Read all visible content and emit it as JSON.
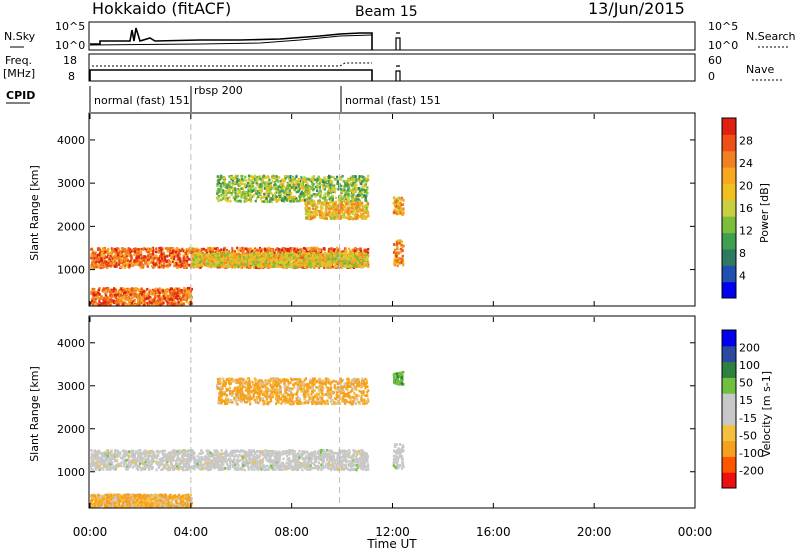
{
  "header": {
    "station": "Hokkaido (fitACF)",
    "beam": "Beam 15",
    "date": "13/Jun/2015"
  },
  "noise_panel": {
    "left_label": "N.Sky",
    "right_label": "N.Search",
    "left_ticks": [
      "10^5",
      "10^0"
    ],
    "right_ticks": [
      "10^5",
      "10^0"
    ]
  },
  "freq_panel": {
    "left_label_top": "Freq.",
    "left_label_bottom": "[MHz]",
    "right_label": "Nave",
    "left_ticks": [
      "18",
      "8"
    ],
    "right_ticks": [
      "60",
      "0"
    ]
  },
  "cpid": {
    "label": "CPID",
    "segments": [
      {
        "text": "normal (fast) 151",
        "start_hr": 0.0
      },
      {
        "text": "rbsp 200",
        "start_hr": 4.0
      },
      {
        "text": "normal (fast) 151",
        "start_hr": 9.9
      }
    ]
  },
  "colors": {
    "power": [
      "#0000ee",
      "#1f4fb0",
      "#2e7a60",
      "#3fa050",
      "#7cbe3c",
      "#c8d040",
      "#f0c020",
      "#f7a820",
      "#f08020",
      "#ee5018",
      "#e02010"
    ],
    "velocity": [
      "#ee1010",
      "#ff5500",
      "#f7a020",
      "#f5c040",
      "#c8c8c8",
      "#c8c8c8",
      "#70c040",
      "#2e8040",
      "#2a4aa0",
      "#0000ee"
    ],
    "grey_scatter": "#c8c8c8"
  },
  "chart_data": [
    {
      "type": "heatmap",
      "title": "Power",
      "ylabel": "Slant Range [km]",
      "xlabel": "",
      "x_range_hr": [
        0,
        24
      ],
      "ylim": [
        180,
        4600
      ],
      "yticks": [
        "1000",
        "2000",
        "3000",
        "4000"
      ],
      "colorbar": {
        "label": "Power [dB]",
        "ticks": [
          "28",
          "24",
          "20",
          "16",
          "12",
          "8",
          "4"
        ],
        "range": [
          0,
          32
        ]
      },
      "clusters": [
        {
          "x_start": 0.0,
          "x_end": 11.0,
          "y_center": 1300,
          "y_halfwidth": 230,
          "value": 26
        },
        {
          "x_start": 4.0,
          "x_end": 11.0,
          "y_center": 1250,
          "y_halfwidth": 160,
          "value": 18
        },
        {
          "x_start": 5.0,
          "x_end": 11.0,
          "y_center": 2900,
          "y_halfwidth": 300,
          "value": 14
        },
        {
          "x_start": 8.5,
          "x_end": 11.0,
          "y_center": 2400,
          "y_halfwidth": 200,
          "value": 20
        },
        {
          "x_start": 0.0,
          "x_end": 4.0,
          "y_center": 400,
          "y_halfwidth": 200,
          "value": 26
        },
        {
          "x_start": 12.0,
          "x_end": 12.4,
          "y_center": 1400,
          "y_halfwidth": 300,
          "value": 24
        },
        {
          "x_start": 12.0,
          "x_end": 12.4,
          "y_center": 2500,
          "y_halfwidth": 200,
          "value": 22
        }
      ]
    },
    {
      "type": "heatmap",
      "title": "Velocity",
      "ylabel": "Slant Range [km]",
      "xlabel": "Time UT",
      "x_range_hr": [
        0,
        24
      ],
      "ylim": [
        180,
        4600
      ],
      "yticks": [
        "1000",
        "2000",
        "3000",
        "4000"
      ],
      "xticks": [
        "00:00",
        "04:00",
        "08:00",
        "12:00",
        "16:00",
        "20:00",
        "00:00"
      ],
      "colorbar": {
        "label": "Velocity [m s-1]",
        "ticks": [
          "200",
          "100",
          "50",
          "15",
          "-15",
          "-50",
          "-100",
          "-200"
        ]
      },
      "clusters": [
        {
          "x_start": 0.0,
          "x_end": 11.0,
          "y_center": 1300,
          "y_halfwidth": 230,
          "value": 0
        },
        {
          "x_start": 5.0,
          "x_end": 11.0,
          "y_center": 2900,
          "y_halfwidth": 300,
          "value": -40
        },
        {
          "x_start": 0.0,
          "x_end": 4.0,
          "y_center": 350,
          "y_halfwidth": 150,
          "value": -40
        },
        {
          "x_start": 12.0,
          "x_end": 12.4,
          "y_center": 1400,
          "y_halfwidth": 300,
          "value": 0
        },
        {
          "x_start": 12.0,
          "x_end": 12.4,
          "y_center": 3200,
          "y_halfwidth": 150,
          "value": 60
        }
      ]
    }
  ]
}
